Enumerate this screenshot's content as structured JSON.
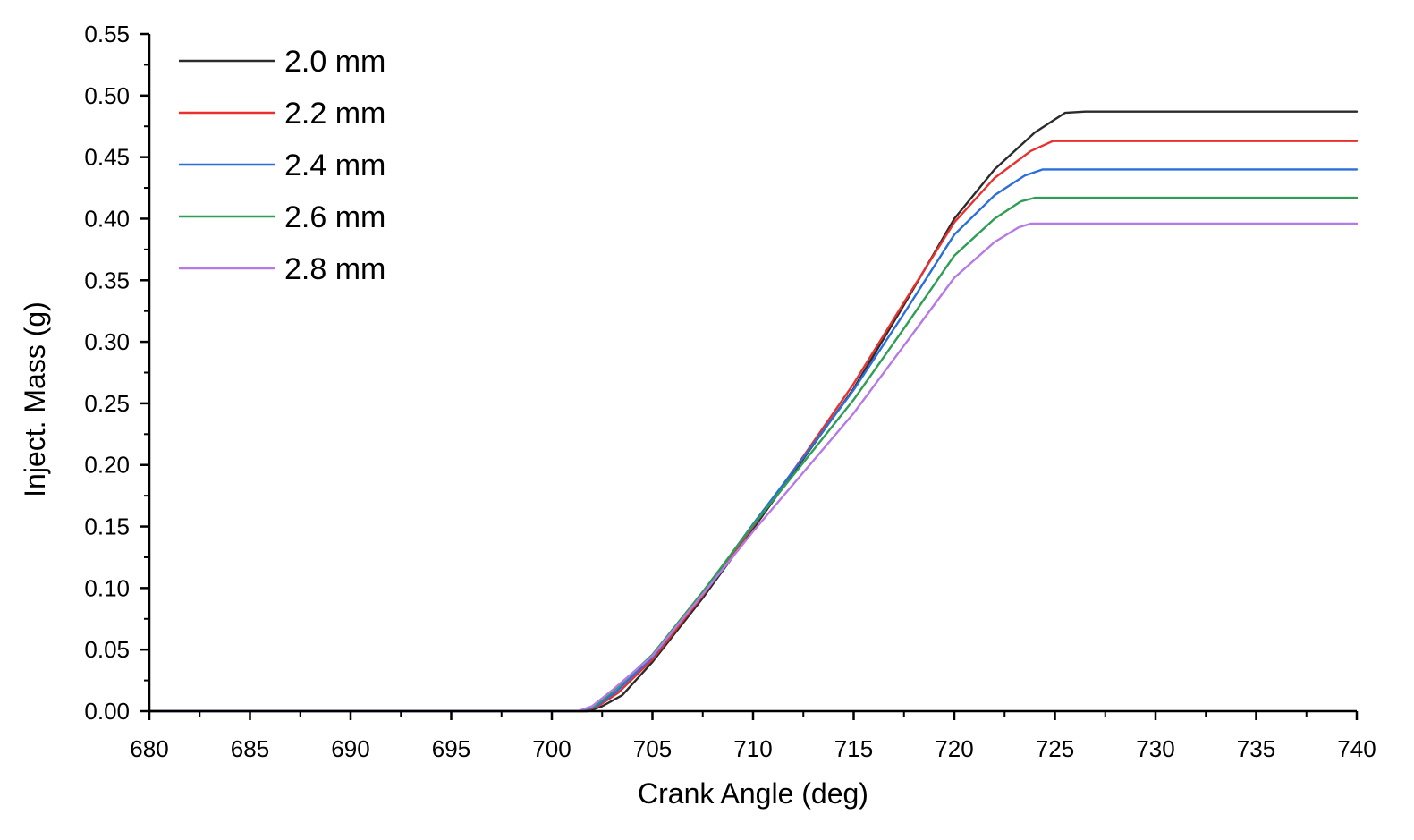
{
  "chart_data": {
    "type": "line",
    "title": "",
    "xlabel": "Crank Angle (deg)",
    "ylabel": "Inject. Mass (g)",
    "xlim": [
      680,
      740
    ],
    "ylim": [
      0,
      0.55
    ],
    "x_ticks": [
      "680",
      "685",
      "690",
      "695",
      "700",
      "705",
      "710",
      "715",
      "720",
      "725",
      "730",
      "735",
      "740"
    ],
    "y_ticks": [
      "0.00",
      "0.05",
      "0.10",
      "0.15",
      "0.20",
      "0.25",
      "0.30",
      "0.35",
      "0.40",
      "0.45",
      "0.50",
      "0.55"
    ],
    "grid": false,
    "legend_position": "top-left",
    "series": [
      {
        "name": "2.0 mm",
        "color": "#2b2b2b",
        "x": [
          680,
          701.8,
          702.5,
          703.5,
          705,
          707.5,
          710,
          712.5,
          715,
          717.5,
          720,
          722,
          724,
          725.5,
          726.5,
          740
        ],
        "y": [
          0,
          0,
          0.004,
          0.013,
          0.04,
          0.092,
          0.148,
          0.205,
          0.262,
          0.33,
          0.4,
          0.44,
          0.47,
          0.486,
          0.487,
          0.487
        ]
      },
      {
        "name": "2.2 mm",
        "color": "#e8312f",
        "x": [
          680,
          701.6,
          702.3,
          703.3,
          705,
          707.5,
          710,
          712.5,
          715,
          717.5,
          720,
          722,
          723.8,
          724.9,
          740
        ],
        "y": [
          0,
          0,
          0.004,
          0.015,
          0.042,
          0.094,
          0.15,
          0.207,
          0.266,
          0.332,
          0.397,
          0.433,
          0.455,
          0.463,
          0.463
        ]
      },
      {
        "name": "2.4 mm",
        "color": "#2a6fdb",
        "x": [
          680,
          701.5,
          702.2,
          703.2,
          705,
          707.5,
          710,
          712.5,
          715,
          717.5,
          720,
          722,
          723.5,
          724.4,
          740
        ],
        "y": [
          0,
          0,
          0.004,
          0.016,
          0.044,
          0.096,
          0.152,
          0.206,
          0.261,
          0.323,
          0.387,
          0.419,
          0.435,
          0.44,
          0.44
        ]
      },
      {
        "name": "2.6 mm",
        "color": "#2e9e54",
        "x": [
          680,
          701.4,
          702.1,
          703.1,
          705,
          707.5,
          710,
          712.5,
          715,
          717.5,
          720,
          722,
          723.3,
          724,
          740
        ],
        "y": [
          0,
          0,
          0.004,
          0.017,
          0.046,
          0.097,
          0.151,
          0.202,
          0.253,
          0.311,
          0.37,
          0.4,
          0.414,
          0.417,
          0.417
        ]
      },
      {
        "name": "2.8 mm",
        "color": "#b57ae6",
        "x": [
          680,
          701.3,
          702,
          703,
          705,
          707.5,
          710,
          712.5,
          715,
          717.5,
          720,
          722,
          723.2,
          723.8,
          740
        ],
        "y": [
          0,
          0,
          0.004,
          0.017,
          0.045,
          0.095,
          0.146,
          0.194,
          0.242,
          0.297,
          0.352,
          0.381,
          0.393,
          0.396,
          0.396
        ]
      }
    ]
  }
}
